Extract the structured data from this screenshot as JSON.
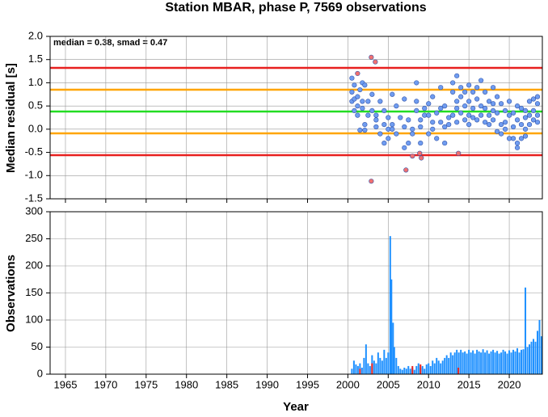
{
  "chart_data": [
    {
      "type": "scatter",
      "title": "Station MBAR, phase P, 7569 observations",
      "annotation": "median = 0.38, smad = 0.47",
      "y_label": "Median residual [s]",
      "xlim": [
        1963.1,
        2024.1
      ],
      "xticks": [
        1965,
        1970,
        1975,
        1980,
        1985,
        1990,
        1995,
        2000,
        2005,
        2010,
        2015,
        2020
      ],
      "ylim": [
        -1.5,
        2.0
      ],
      "yticks": [
        -1.5,
        {
          "value": -1.0,
          "label": "-1.0"
        },
        -0.5,
        {
          "value": 0.0,
          "label": "0.0"
        },
        0.5,
        {
          "value": 1.0,
          "label": "1.0"
        },
        1.5,
        {
          "value": 2.0,
          "label": "2.0"
        }
      ],
      "grid": true,
      "lines": [
        {
          "value": 1.32,
          "color": "#e8201f"
        },
        {
          "value": 0.85,
          "color": "#ffa500"
        },
        {
          "value": 0.38,
          "color": "#22dd22"
        },
        {
          "value": -0.09,
          "color": "#ffa500"
        },
        {
          "value": -0.56,
          "color": "#e8201f"
        }
      ],
      "series": [
        {
          "color": "#6f9cf0",
          "x": [
            2000.5,
            2000.5,
            2000.5,
            2000.8,
            2000.8,
            2000.8,
            2001.2,
            2001.2,
            2001.2,
            2001.5,
            2001.5,
            2001.8,
            2001.8,
            2001.8,
            2002.1,
            2002.1,
            2002.1,
            2002.5,
            2002.5,
            2003,
            2003,
            2003.5,
            2003.5,
            2003.5,
            2004,
            2004,
            2004.5,
            2004.5,
            2004.5,
            2005,
            2005,
            2005,
            2005.5,
            2005.5,
            2005.5,
            2006,
            2006,
            2006.5,
            2007,
            2007,
            2007,
            2007.5,
            2007.5,
            2008,
            2008,
            2008.5,
            2008.5,
            2008.5,
            2009,
            2009,
            2009,
            2009.5,
            2009.5,
            2010,
            2010,
            2010,
            2010.5,
            2010.5,
            2010.5,
            2011,
            2011,
            2011.5,
            2011.5,
            2011.5,
            2012,
            2012,
            2012,
            2012.5,
            2012.5,
            2013,
            2013,
            2013,
            2013.5,
            2013.5,
            2013.5,
            2013.5,
            2014,
            2014,
            2014,
            2014.5,
            2014.5,
            2014.5,
            2015,
            2015,
            2015,
            2015,
            2015.5,
            2015.5,
            2015.5,
            2016,
            2016,
            2016,
            2016.5,
            2016.5,
            2016.5,
            2017,
            2017,
            2017,
            2017.5,
            2017.5,
            2017.5,
            2018,
            2018,
            2018,
            2018,
            2018.5,
            2018.5,
            2018.5,
            2019,
            2019,
            2019,
            2019.5,
            2019.5,
            2019.5,
            2020,
            2020,
            2020,
            2020.5,
            2020.5,
            2020.5,
            2021,
            2021,
            2021,
            2021,
            2021.5,
            2021.5,
            2021.5,
            2022,
            2022,
            2022,
            2022,
            2022.5,
            2022.5,
            2022.5,
            2023,
            2023,
            2023,
            2023.5,
            2023.5,
            2023.5,
            2023.5
          ],
          "values": [
            1.1,
            0.8,
            0.6,
            0.95,
            0.65,
            0.4,
            0.5,
            0.7,
            0.3,
            0.85,
            -0.02,
            0.6,
            0.45,
            1.0,
            0.95,
            0.1,
            -0.02,
            0.3,
            0.6,
            0.75,
            0.4,
            0.3,
            0.2,
            0.05,
            -0.1,
            0.6,
            0.4,
            0.1,
            -0.3,
            0.0,
            -0.2,
            0.25,
            0.75,
            0.1,
            0.0,
            0.5,
            -0.1,
            0.25,
            0.05,
            0.65,
            -0.4,
            0.2,
            -0.3,
            0.0,
            -0.1,
            1.0,
            0.4,
            0.6,
            0.2,
            0.05,
            -0.3,
            0.45,
            0.3,
            0.3,
            -0.1,
            0.55,
            0.7,
            0.15,
            0.0,
            0.35,
            -0.2,
            0.9,
            0.45,
            0.15,
            -0.3,
            0.05,
            0.5,
            0.25,
            0.1,
            1.0,
            0.3,
            0.8,
            1.15,
            0.6,
            0.45,
            0.15,
            0.7,
            0.9,
            0.35,
            0.8,
            0.5,
            0.2,
            0.95,
            0.6,
            0.3,
            0.1,
            0.8,
            0.45,
            0.25,
            0.9,
            0.65,
            0.2,
            1.05,
            0.5,
            0.3,
            0.8,
            0.45,
            0.15,
            0.6,
            0.3,
            0.1,
            0.9,
            0.55,
            0.4,
            0.2,
            0.7,
            0.35,
            -0.05,
            0.55,
            0.1,
            -0.1,
            0.4,
            0.15,
            0.0,
            0.6,
            0.3,
            -0.2,
            0.35,
            0.05,
            -0.2,
            0.5,
            0.2,
            -0.3,
            -0.4,
            0.45,
            0.1,
            -0.2,
            0.4,
            0.25,
            0.0,
            -0.15,
            0.6,
            0.3,
            0.1,
            0.65,
            0.4,
            0.2,
            0.7,
            0.55,
            0.3,
            0.15
          ]
        },
        {
          "color": "#f07070",
          "x": [
            2001.2,
            2002.9,
            2003.4,
            2002.9,
            2007.2,
            2008,
            2008.9,
            2009.1,
            2013.7
          ],
          "values": [
            1.2,
            1.55,
            1.45,
            -1.12,
            -0.88,
            -0.58,
            -0.52,
            -0.62,
            -0.52
          ]
        }
      ]
    },
    {
      "type": "bar",
      "x_label": "Year",
      "y_label": "Observations",
      "xlim": [
        1963.1,
        2024.1
      ],
      "xticks": [
        1965,
        1970,
        1975,
        1980,
        1985,
        1990,
        1995,
        2000,
        2005,
        2010,
        2015,
        2020
      ],
      "ylim": [
        0,
        300
      ],
      "yticks": [
        0,
        50,
        100,
        150,
        200,
        250,
        300
      ],
      "grid": true,
      "series": [
        {
          "color": "#1e90ff",
          "x": [
            2000.5,
            2000.75,
            2001,
            2001.25,
            2001.5,
            2001.75,
            2002,
            2002.25,
            2002.5,
            2002.75,
            2003,
            2003.25,
            2003.5,
            2003.75,
            2004,
            2004.25,
            2004.5,
            2004.75,
            2005,
            2005.25,
            2005.4,
            2005.6,
            2005.75,
            2006,
            2006.25,
            2006.5,
            2006.75,
            2007,
            2007.25,
            2007.5,
            2007.75,
            2008,
            2008.25,
            2008.5,
            2008.75,
            2009,
            2009.25,
            2009.5,
            2009.75,
            2010,
            2010.25,
            2010.5,
            2010.75,
            2011,
            2011.25,
            2011.5,
            2011.75,
            2012,
            2012.25,
            2012.5,
            2012.75,
            2013,
            2013.25,
            2013.5,
            2013.75,
            2014,
            2014.25,
            2014.5,
            2014.75,
            2015,
            2015.25,
            2015.5,
            2015.75,
            2016,
            2016.25,
            2016.5,
            2016.75,
            2017,
            2017.25,
            2017.5,
            2017.75,
            2018,
            2018.25,
            2018.5,
            2018.75,
            2019,
            2019.25,
            2019.5,
            2019.75,
            2020,
            2020.25,
            2020.5,
            2020.75,
            2021,
            2021.25,
            2021.5,
            2021.75,
            2022,
            2022.25,
            2022.5,
            2022.75,
            2023,
            2023.25,
            2023.5,
            2023.75,
            2024
          ],
          "values": [
            10,
            25,
            18,
            15,
            20,
            12,
            30,
            55,
            20,
            15,
            35,
            25,
            20,
            40,
            30,
            25,
            45,
            30,
            40,
            255,
            175,
            95,
            50,
            30,
            15,
            10,
            8,
            12,
            10,
            15,
            10,
            12,
            8,
            15,
            20,
            12,
            15,
            10,
            18,
            20,
            15,
            25,
            20,
            30,
            25,
            20,
            25,
            30,
            35,
            30,
            40,
            35,
            40,
            45,
            40,
            45,
            40,
            42,
            38,
            45,
            40,
            44,
            38,
            45,
            42,
            40,
            46,
            40,
            44,
            38,
            42,
            45,
            40,
            43,
            38,
            40,
            45,
            42,
            38,
            44,
            40,
            45,
            42,
            48,
            40,
            45,
            46,
            160,
            50,
            55,
            60,
            65,
            60,
            80,
            100,
            70
          ]
        },
        {
          "color": "#e8201f",
          "x": [
            2001.5,
            2003,
            2008,
            2009,
            2013.7
          ],
          "values": [
            10,
            20,
            15,
            18,
            12
          ]
        }
      ]
    }
  ]
}
